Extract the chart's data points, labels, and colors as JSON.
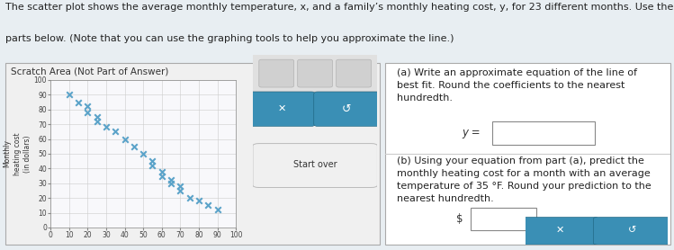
{
  "title_line1": "The scatter plot shows the average monthly temperature, x, and a family’s monthly heating cost, y, for 23 different months. Use the scatter plot to answer the",
  "title_line2": "parts below. (Note that you can use the graphing tools to help you approximate the line.)",
  "scratch_label": "Scratch Area (Not Part of Answer)",
  "scatter_x": [
    10,
    15,
    20,
    20,
    25,
    25,
    30,
    35,
    40,
    45,
    50,
    55,
    55,
    60,
    60,
    65,
    65,
    70,
    70,
    75,
    80,
    85,
    90
  ],
  "scatter_y": [
    90,
    85,
    82,
    78,
    75,
    72,
    68,
    65,
    60,
    55,
    50,
    45,
    42,
    38,
    35,
    32,
    30,
    28,
    25,
    20,
    18,
    15,
    12
  ],
  "scatter_color": "#5ba3c9",
  "scatter_marker": "x",
  "scatter_linewidth": 1.5,
  "ylabel": "Monthly\nheating cost\n(in dollars)",
  "xmin": 0,
  "xmax": 100,
  "ymin": 0,
  "ymax": 100,
  "xticks": [
    0,
    10,
    20,
    30,
    40,
    50,
    60,
    70,
    80,
    90,
    100
  ],
  "yticks": [
    0,
    10,
    20,
    30,
    40,
    50,
    60,
    70,
    80,
    90,
    100
  ],
  "grid_color": "#cccccc",
  "panel_bg": "#e8eef2",
  "scratch_bg": "#f0f0f0",
  "plot_bg": "#f8f8fb",
  "right_panel_bg": "#ffffff",
  "question_a_text": "(a) Write an approximate equation of the line of\nbest fit. Round the coefficients to the nearest\nhundredth.",
  "question_b_text": "(b) Using your equation from part (a), predict the\nmonthly heating cost for a month with an average\ntemperature of 35 °F. Round your prediction to the\nnearest hundredth.",
  "btn_color": "#3a8fb5",
  "tool_icon_bg": "#d0d0d0",
  "tool_panel_bg": "#e0e0e0",
  "startover_bg": "#f0f0f0",
  "font_size_title": 8.0,
  "font_size_scratch": 7.5,
  "font_size_question": 8.0,
  "font_size_axis": 5.5
}
